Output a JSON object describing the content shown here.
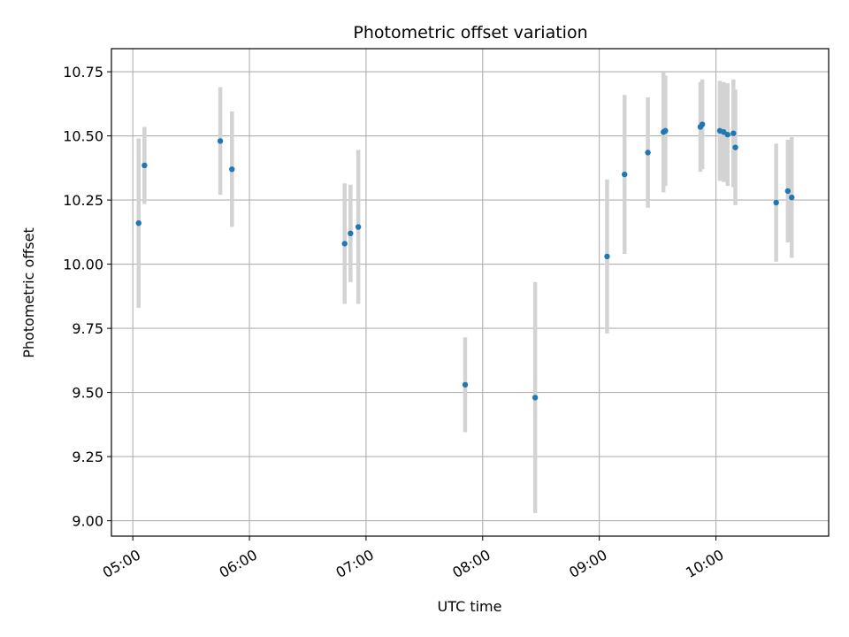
{
  "chart_data": {
    "type": "scatter",
    "title": "Photometric offset variation",
    "xlabel": "UTC time",
    "ylabel": "Photometric offset",
    "x_ticks": [
      "05:00",
      "06:00",
      "07:00",
      "08:00",
      "09:00",
      "10:00"
    ],
    "y_ticks": [
      "9.00",
      "9.25",
      "9.50",
      "9.75",
      "10.00",
      "10.25",
      "10.50",
      "10.75"
    ],
    "xlim": [
      "04:49",
      "10:58"
    ],
    "ylim": [
      8.94,
      10.84
    ],
    "grid": true,
    "colors": {
      "point": "#1f77b4",
      "errorbar": "#d3d3d3",
      "grid": "#b0b0b0"
    },
    "points": [
      {
        "x": "05:03",
        "y": 10.16,
        "yerr": 0.33
      },
      {
        "x": "05:06",
        "y": 10.385,
        "yerr": 0.15
      },
      {
        "x": "05:45",
        "y": 10.48,
        "yerr": 0.21
      },
      {
        "x": "05:51",
        "y": 10.37,
        "yerr": 0.225
      },
      {
        "x": "06:49",
        "y": 10.08,
        "yerr": 0.235
      },
      {
        "x": "06:52",
        "y": 10.12,
        "yerr": 0.19
      },
      {
        "x": "06:56",
        "y": 10.145,
        "yerr": 0.3
      },
      {
        "x": "07:51",
        "y": 9.53,
        "yerr": 0.185
      },
      {
        "x": "08:27",
        "y": 9.48,
        "yerr": 0.45
      },
      {
        "x": "09:04",
        "y": 10.03,
        "yerr": 0.3
      },
      {
        "x": "09:13",
        "y": 10.35,
        "yerr": 0.31
      },
      {
        "x": "09:25",
        "y": 10.435,
        "yerr": 0.215
      },
      {
        "x": "09:33",
        "y": 10.515,
        "yerr": 0.235
      },
      {
        "x": "09:34",
        "y": 10.52,
        "yerr": 0.215
      },
      {
        "x": "09:52",
        "y": 10.535,
        "yerr": 0.175
      },
      {
        "x": "09:53",
        "y": 10.545,
        "yerr": 0.175
      },
      {
        "x": "10:02",
        "y": 10.52,
        "yerr": 0.195
      },
      {
        "x": "10:04",
        "y": 10.515,
        "yerr": 0.195
      },
      {
        "x": "10:06",
        "y": 10.505,
        "yerr": 0.2
      },
      {
        "x": "10:09",
        "y": 10.51,
        "yerr": 0.21
      },
      {
        "x": "10:10",
        "y": 10.455,
        "yerr": 0.225
      },
      {
        "x": "10:31",
        "y": 10.24,
        "yerr": 0.23
      },
      {
        "x": "10:37",
        "y": 10.285,
        "yerr": 0.2
      },
      {
        "x": "10:39",
        "y": 10.26,
        "yerr": 0.235
      }
    ]
  }
}
